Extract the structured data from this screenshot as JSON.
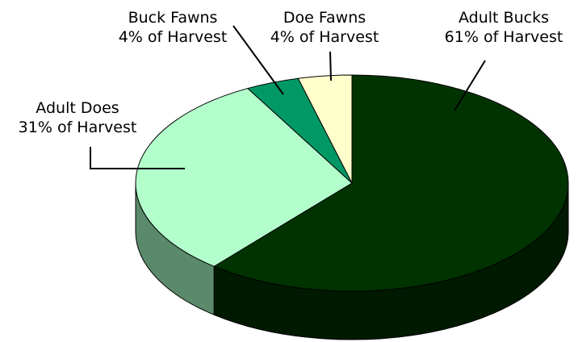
{
  "chart_data": {
    "type": "pie",
    "three_d": true,
    "start_angle_deg": 0,
    "direction": "clockwise",
    "slices": [
      {
        "name": "Adult Bucks",
        "value": 61,
        "label": "61% of Harvest",
        "color": "#003300",
        "side_color": "#001a00"
      },
      {
        "name": "Adult Does",
        "value": 31,
        "label": "31% of Harvest",
        "color": "#b3ffcc",
        "side_color": "#5a8a6a"
      },
      {
        "name": "Buck Fawns",
        "value": 4,
        "label": "4% of Harvest",
        "color": "#009966",
        "side_color": "#00664a"
      },
      {
        "name": "Doe Fawns",
        "value": 4,
        "label": "4% of Harvest",
        "color": "#ffffcc",
        "side_color": "#cccc99"
      }
    ],
    "legend": "none"
  }
}
